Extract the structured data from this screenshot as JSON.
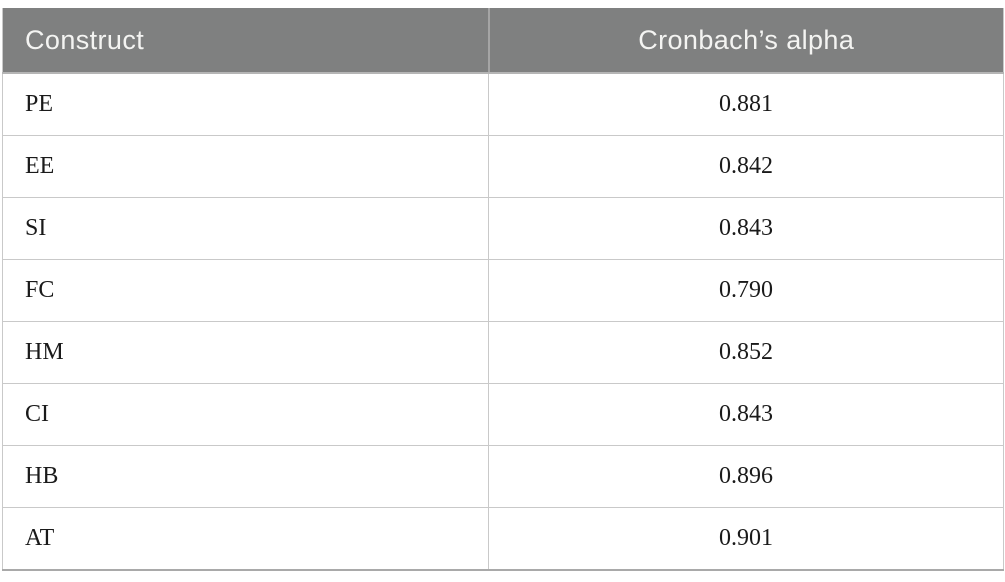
{
  "table": {
    "columns": [
      {
        "key": "construct",
        "label": "Construct",
        "align": "left"
      },
      {
        "key": "alpha",
        "label": "Cronbach’s alpha",
        "align": "center"
      }
    ],
    "rows": [
      {
        "construct": "PE",
        "alpha": "0.881"
      },
      {
        "construct": "EE",
        "alpha": "0.842"
      },
      {
        "construct": "SI",
        "alpha": "0.843"
      },
      {
        "construct": "FC",
        "alpha": "0.790"
      },
      {
        "construct": "HM",
        "alpha": "0.852"
      },
      {
        "construct": "CI",
        "alpha": "0.843"
      },
      {
        "construct": "HB",
        "alpha": "0.896"
      },
      {
        "construct": "AT",
        "alpha": "0.901"
      }
    ]
  },
  "chart_data": {
    "type": "table",
    "title": "",
    "columns": [
      "Construct",
      "Cronbach’s alpha"
    ],
    "categories": [
      "PE",
      "EE",
      "SI",
      "FC",
      "HM",
      "CI",
      "HB",
      "AT"
    ],
    "values": [
      0.881,
      0.842,
      0.843,
      0.79,
      0.852,
      0.843,
      0.896,
      0.901
    ]
  },
  "colors": {
    "header_background": "#7f8080",
    "header_text": "#f4f4f2",
    "cell_border": "#c9c9c9",
    "header_divider": "#a5a5a5",
    "bottom_rule": "#a9a9a9",
    "body_text": "#1a1a1a",
    "page_background": "#ffffff"
  }
}
